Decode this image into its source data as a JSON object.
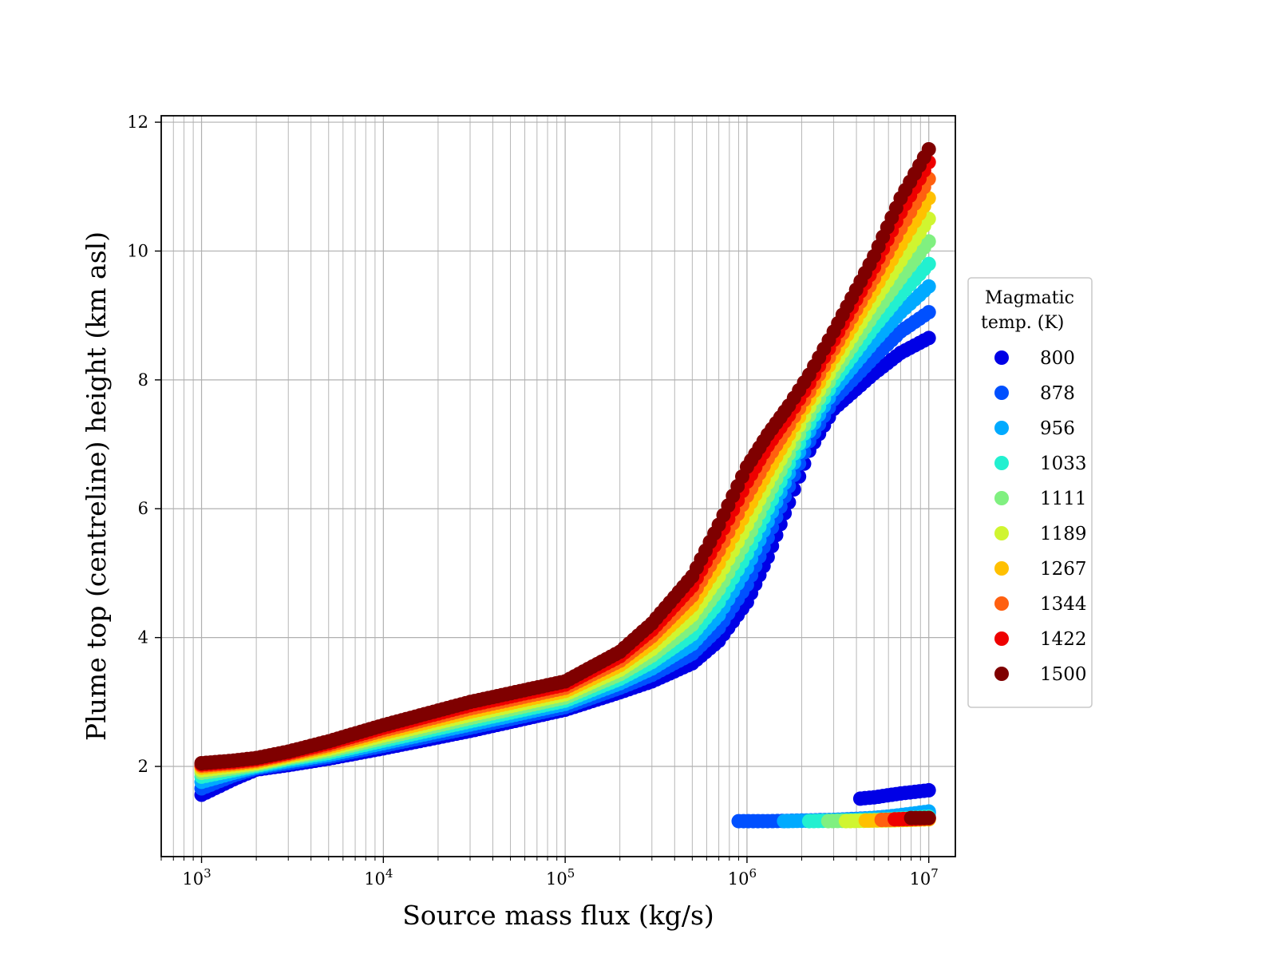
{
  "chart_data": {
    "type": "scatter",
    "title": "",
    "xlabel": "Source mass flux (kg/s)",
    "ylabel": "Plume top (centreline) height (km asl)",
    "xscale": "log",
    "xlim": [
      600,
      14000000
    ],
    "ylim": [
      0.6,
      12.1
    ],
    "grid": true,
    "x_ticks": [
      {
        "value": 1000,
        "base": "10",
        "exp": "3"
      },
      {
        "value": 10000,
        "base": "10",
        "exp": "4"
      },
      {
        "value": 100000,
        "base": "10",
        "exp": "5"
      },
      {
        "value": 1000000,
        "base": "10",
        "exp": "6"
      },
      {
        "value": 10000000,
        "base": "10",
        "exp": "7"
      }
    ],
    "y_ticks": [
      {
        "value": 2,
        "label": "2"
      },
      {
        "value": 4,
        "label": "4"
      },
      {
        "value": 6,
        "label": "6"
      },
      {
        "value": 8,
        "label": "8"
      },
      {
        "value": 10,
        "label": "10"
      },
      {
        "value": 12,
        "label": "12"
      }
    ],
    "legend": {
      "title_line1": "Magmatic",
      "title_line2": "temp. (K)",
      "placement": "outside-right"
    },
    "series": [
      {
        "name": "800",
        "color": "#0000e6",
        "x": [
          1000,
          1500,
          2000,
          3000,
          5000,
          10000,
          30000,
          100000,
          200000,
          300000,
          500000,
          700000,
          1000000,
          1300000,
          1700000,
          2200000,
          3000000,
          5000000,
          7000000,
          10000000
        ],
        "y": [
          1.56,
          1.8,
          1.95,
          2.02,
          2.12,
          2.28,
          2.55,
          2.88,
          3.15,
          3.32,
          3.6,
          3.95,
          4.55,
          5.25,
          6.1,
          6.9,
          7.55,
          8.1,
          8.42,
          8.65
        ],
        "x_lower": [
          4200000,
          5000000,
          7000000,
          10000000
        ],
        "y_lower": [
          1.5,
          1.52,
          1.58,
          1.63
        ]
      },
      {
        "name": "878",
        "color": "#0050ff",
        "x": [
          1000,
          1500,
          2000,
          3000,
          5000,
          10000,
          30000,
          100000,
          200000,
          300000,
          500000,
          700000,
          1000000,
          1300000,
          1700000,
          2200000,
          3000000,
          5000000,
          7000000,
          10000000
        ],
        "y": [
          1.66,
          1.86,
          1.97,
          2.05,
          2.15,
          2.32,
          2.6,
          2.92,
          3.22,
          3.42,
          3.75,
          4.15,
          4.82,
          5.55,
          6.35,
          7.05,
          7.7,
          8.35,
          8.75,
          9.05
        ],
        "x_lower": [
          900000,
          1300000,
          2000000,
          3000000,
          5000000,
          7000000,
          10000000
        ],
        "y_lower": [
          1.15,
          1.15,
          1.16,
          1.17,
          1.2,
          1.24,
          1.28
        ]
      },
      {
        "name": "956",
        "color": "#00aaff",
        "x": [
          1000,
          1500,
          2000,
          3000,
          5000,
          10000,
          30000,
          100000,
          200000,
          300000,
          500000,
          700000,
          1000000,
          1300000,
          1700000,
          2200000,
          3000000,
          5000000,
          7000000,
          10000000
        ],
        "y": [
          1.76,
          1.9,
          1.99,
          2.08,
          2.18,
          2.36,
          2.65,
          2.97,
          3.29,
          3.52,
          3.9,
          4.35,
          5.08,
          5.8,
          6.55,
          7.2,
          7.85,
          8.6,
          9.05,
          9.45
        ],
        "x_lower": [
          1600000,
          2500000,
          4000000,
          6000000,
          10000000
        ],
        "y_lower": [
          1.15,
          1.16,
          1.18,
          1.22,
          1.3
        ]
      },
      {
        "name": "1033",
        "color": "#22f0d0",
        "x": [
          1000,
          1500,
          2000,
          3000,
          5000,
          10000,
          30000,
          100000,
          200000,
          300000,
          500000,
          700000,
          1000000,
          1300000,
          1700000,
          2200000,
          3000000,
          5000000,
          7000000,
          10000000
        ],
        "y": [
          1.84,
          1.94,
          2.01,
          2.11,
          2.21,
          2.4,
          2.7,
          3.02,
          3.36,
          3.62,
          4.05,
          4.55,
          5.3,
          6.0,
          6.7,
          7.32,
          7.98,
          8.82,
          9.32,
          9.8
        ],
        "x_lower": [
          2200000,
          3500000,
          6000000,
          10000000
        ],
        "y_lower": [
          1.15,
          1.16,
          1.18,
          1.22
        ]
      },
      {
        "name": "1111",
        "color": "#80f080",
        "x": [
          1000,
          1500,
          2000,
          3000,
          5000,
          10000,
          30000,
          100000,
          200000,
          300000,
          500000,
          700000,
          1000000,
          1300000,
          1700000,
          2200000,
          3000000,
          5000000,
          7000000,
          10000000
        ],
        "y": [
          1.9,
          1.97,
          2.03,
          2.13,
          2.24,
          2.44,
          2.75,
          3.07,
          3.43,
          3.72,
          4.2,
          4.75,
          5.52,
          6.2,
          6.85,
          7.45,
          8.1,
          9.02,
          9.58,
          10.15
        ],
        "x_lower": [
          2800000,
          4500000,
          7000000,
          10000000
        ],
        "y_lower": [
          1.15,
          1.16,
          1.17,
          1.19
        ]
      },
      {
        "name": "1189",
        "color": "#d0f530",
        "x": [
          1000,
          1500,
          2000,
          3000,
          5000,
          10000,
          30000,
          100000,
          200000,
          300000,
          500000,
          700000,
          1000000,
          1300000,
          1700000,
          2200000,
          3000000,
          5000000,
          7000000,
          10000000
        ],
        "y": [
          1.94,
          2.0,
          2.05,
          2.15,
          2.27,
          2.48,
          2.8,
          3.12,
          3.5,
          3.82,
          4.35,
          4.95,
          5.75,
          6.4,
          7.0,
          7.58,
          8.22,
          9.22,
          9.85,
          10.5
        ],
        "x_lower": [
          3500000,
          5500000,
          8000000,
          10000000
        ],
        "y_lower": [
          1.15,
          1.16,
          1.17,
          1.18
        ]
      },
      {
        "name": "1267",
        "color": "#ffc000",
        "x": [
          1000,
          1500,
          2000,
          3000,
          5000,
          10000,
          30000,
          100000,
          200000,
          300000,
          500000,
          700000,
          1000000,
          1300000,
          1700000,
          2200000,
          3000000,
          5000000,
          7000000,
          10000000
        ],
        "y": [
          1.98,
          2.03,
          2.07,
          2.17,
          2.3,
          2.52,
          2.85,
          3.17,
          3.57,
          3.92,
          4.5,
          5.15,
          5.98,
          6.58,
          7.15,
          7.7,
          8.35,
          9.4,
          10.1,
          10.82
        ],
        "x_lower": [
          4500000,
          7000000,
          10000000
        ],
        "y_lower": [
          1.16,
          1.17,
          1.18
        ]
      },
      {
        "name": "1344",
        "color": "#ff6010",
        "x": [
          1000,
          1500,
          2000,
          3000,
          5000,
          10000,
          30000,
          100000,
          200000,
          300000,
          500000,
          700000,
          1000000,
          1300000,
          1700000,
          2200000,
          3000000,
          5000000,
          7000000,
          10000000
        ],
        "y": [
          2.01,
          2.05,
          2.09,
          2.19,
          2.33,
          2.56,
          2.9,
          3.22,
          3.64,
          4.02,
          4.65,
          5.35,
          6.2,
          6.78,
          7.3,
          7.82,
          8.48,
          9.58,
          10.35,
          11.12
        ],
        "x_lower": [
          5500000,
          8000000,
          10000000
        ],
        "y_lower": [
          1.17,
          1.18,
          1.19
        ]
      },
      {
        "name": "1422",
        "color": "#ee0000",
        "x": [
          1000,
          1500,
          2000,
          3000,
          5000,
          10000,
          30000,
          100000,
          200000,
          300000,
          500000,
          700000,
          1000000,
          1300000,
          1700000,
          2200000,
          3000000,
          5000000,
          7000000,
          10000000
        ],
        "y": [
          2.03,
          2.07,
          2.11,
          2.21,
          2.36,
          2.6,
          2.95,
          3.27,
          3.71,
          4.12,
          4.8,
          5.55,
          6.42,
          6.98,
          7.45,
          7.95,
          8.62,
          9.75,
          10.6,
          11.38
        ],
        "x_lower": [
          6500000,
          9000000,
          10000000
        ],
        "y_lower": [
          1.18,
          1.19,
          1.2
        ]
      },
      {
        "name": "1500",
        "color": "#7f0000",
        "x": [
          1000,
          1500,
          2000,
          3000,
          5000,
          10000,
          30000,
          100000,
          200000,
          300000,
          500000,
          700000,
          1000000,
          1300000,
          1700000,
          2200000,
          3000000,
          5000000,
          7000000,
          10000000
        ],
        "y": [
          2.05,
          2.09,
          2.13,
          2.23,
          2.39,
          2.64,
          3.0,
          3.32,
          3.78,
          4.22,
          4.95,
          5.75,
          6.65,
          7.15,
          7.6,
          8.08,
          8.75,
          9.92,
          10.82,
          11.58
        ],
        "x_lower": [
          8000000,
          10000000
        ],
        "y_lower": [
          1.2,
          1.2
        ]
      }
    ]
  }
}
